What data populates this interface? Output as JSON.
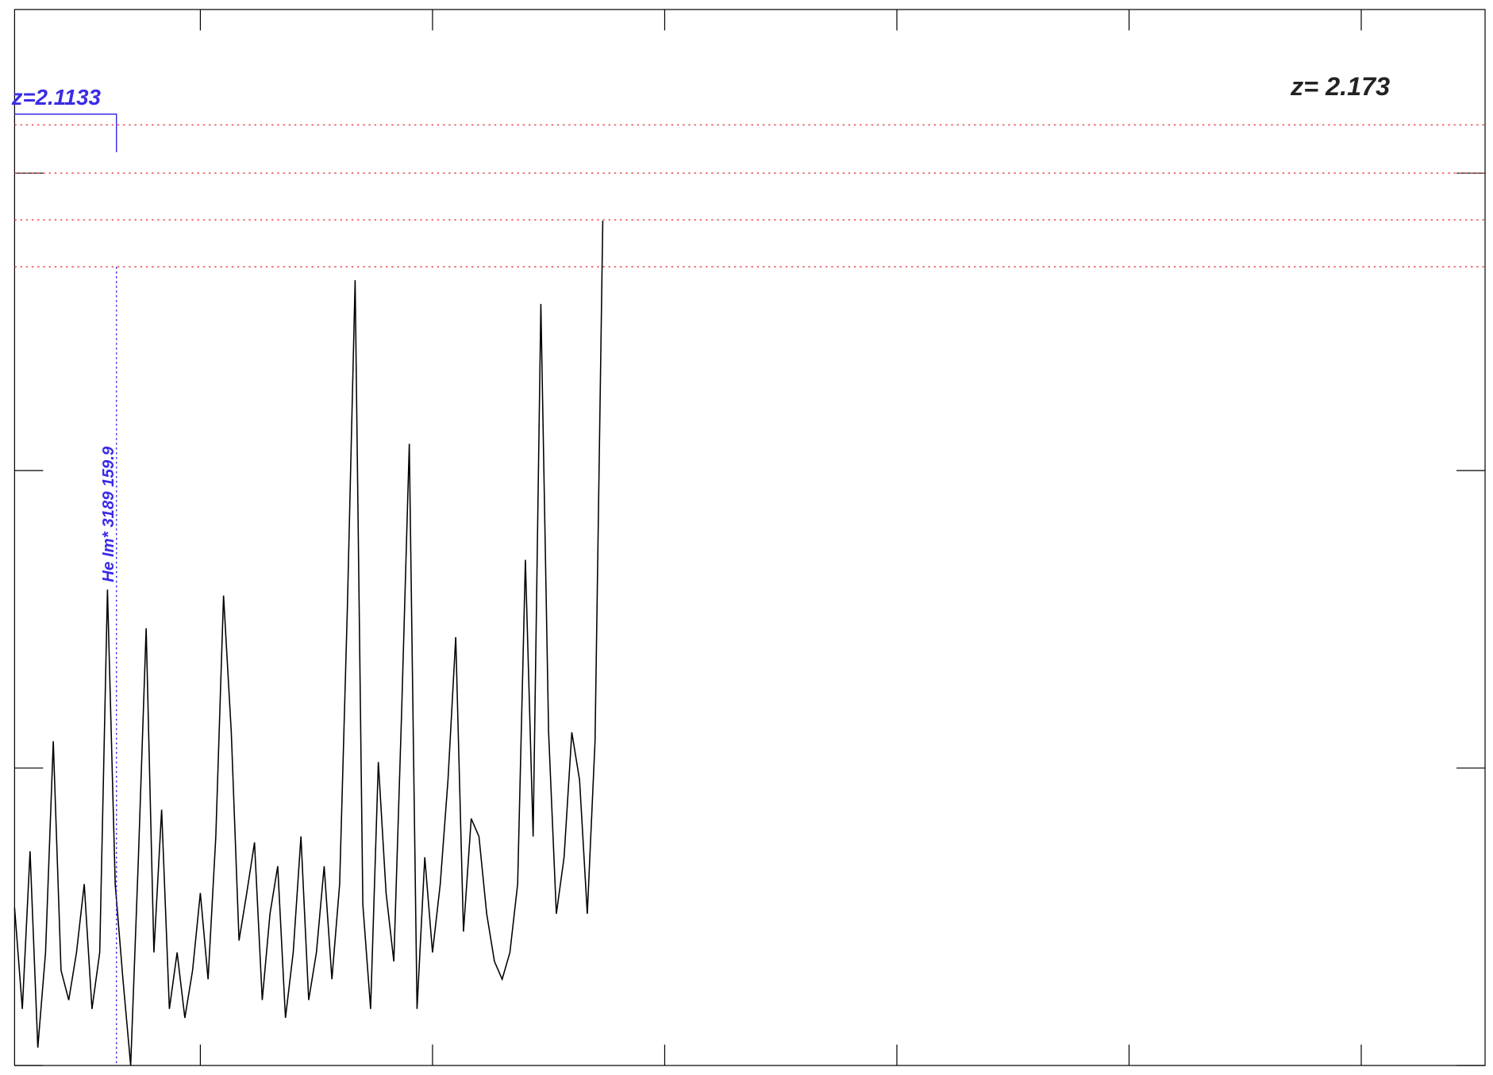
{
  "chart_data": {
    "type": "line",
    "x": [
      0,
      1,
      2,
      3,
      4,
      5,
      6,
      7,
      8,
      9,
      10,
      11,
      12,
      13,
      14,
      15,
      16,
      17,
      18,
      19,
      20,
      21,
      22,
      23,
      24,
      25,
      26,
      27,
      28,
      29,
      30,
      31,
      32,
      33,
      34,
      35,
      36,
      37,
      38,
      39,
      40,
      41,
      42,
      43,
      44,
      45,
      46,
      47,
      48,
      49,
      50,
      51,
      52,
      53,
      54,
      55,
      56,
      57,
      58,
      59,
      60,
      61,
      62,
      63,
      64,
      65,
      66,
      67,
      68,
      69,
      70,
      71,
      72,
      73,
      74,
      75,
      76
    ],
    "series": [
      {
        "color": "#000000",
        "values": [
          0.53,
          0.19,
          0.72,
          0.06,
          0.38,
          1.09,
          0.32,
          0.22,
          0.38,
          0.61,
          0.19,
          0.38,
          1.6,
          0.61,
          0.29,
          0,
          0.7,
          1.47,
          0.38,
          0.86,
          0.19,
          0.38,
          0.16,
          0.32,
          0.58,
          0.29,
          0.77,
          1.58,
          1.12,
          0.42,
          0.58,
          0.75,
          0.22,
          0.51,
          0.67,
          0.16,
          0.38,
          0.77,
          0.22,
          0.38,
          0.67,
          0.29,
          0.61,
          1.54,
          2.64,
          0.54,
          0.19,
          1.02,
          0.58,
          0.35,
          1.18,
          2.09,
          0.19,
          0.7,
          0.38,
          0.61,
          0.96,
          1.44,
          0.45,
          0.83,
          0.77,
          0.51,
          0.35,
          0.29,
          0.38,
          0.61,
          1.7,
          0.77,
          2.56,
          1.12,
          0.51,
          0.7,
          1.12,
          0.96,
          0.51,
          1.09,
          2.84
        ]
      }
    ],
    "xlim": [
      0,
      190
    ],
    "xticks": [
      24,
      54,
      84,
      114,
      144,
      174
    ],
    "ylim": [
      0,
      3.55
    ],
    "yticks": [
      0,
      1,
      2,
      3
    ],
    "hlines": [
      {
        "value": 3.162,
        "color": "#e8383d"
      },
      {
        "value": 3.0,
        "color": "#e8383d"
      },
      {
        "value": 2.843,
        "color": "#e8383d"
      },
      {
        "value": 2.685,
        "color": "#e8383d"
      }
    ],
    "line_marker": {
      "x": 13.16,
      "label": "He Im* 3189 159.9",
      "color": "#3b2be6"
    },
    "marker_redshift": "z=2.1133",
    "redshift_label": "z= 2.173"
  }
}
